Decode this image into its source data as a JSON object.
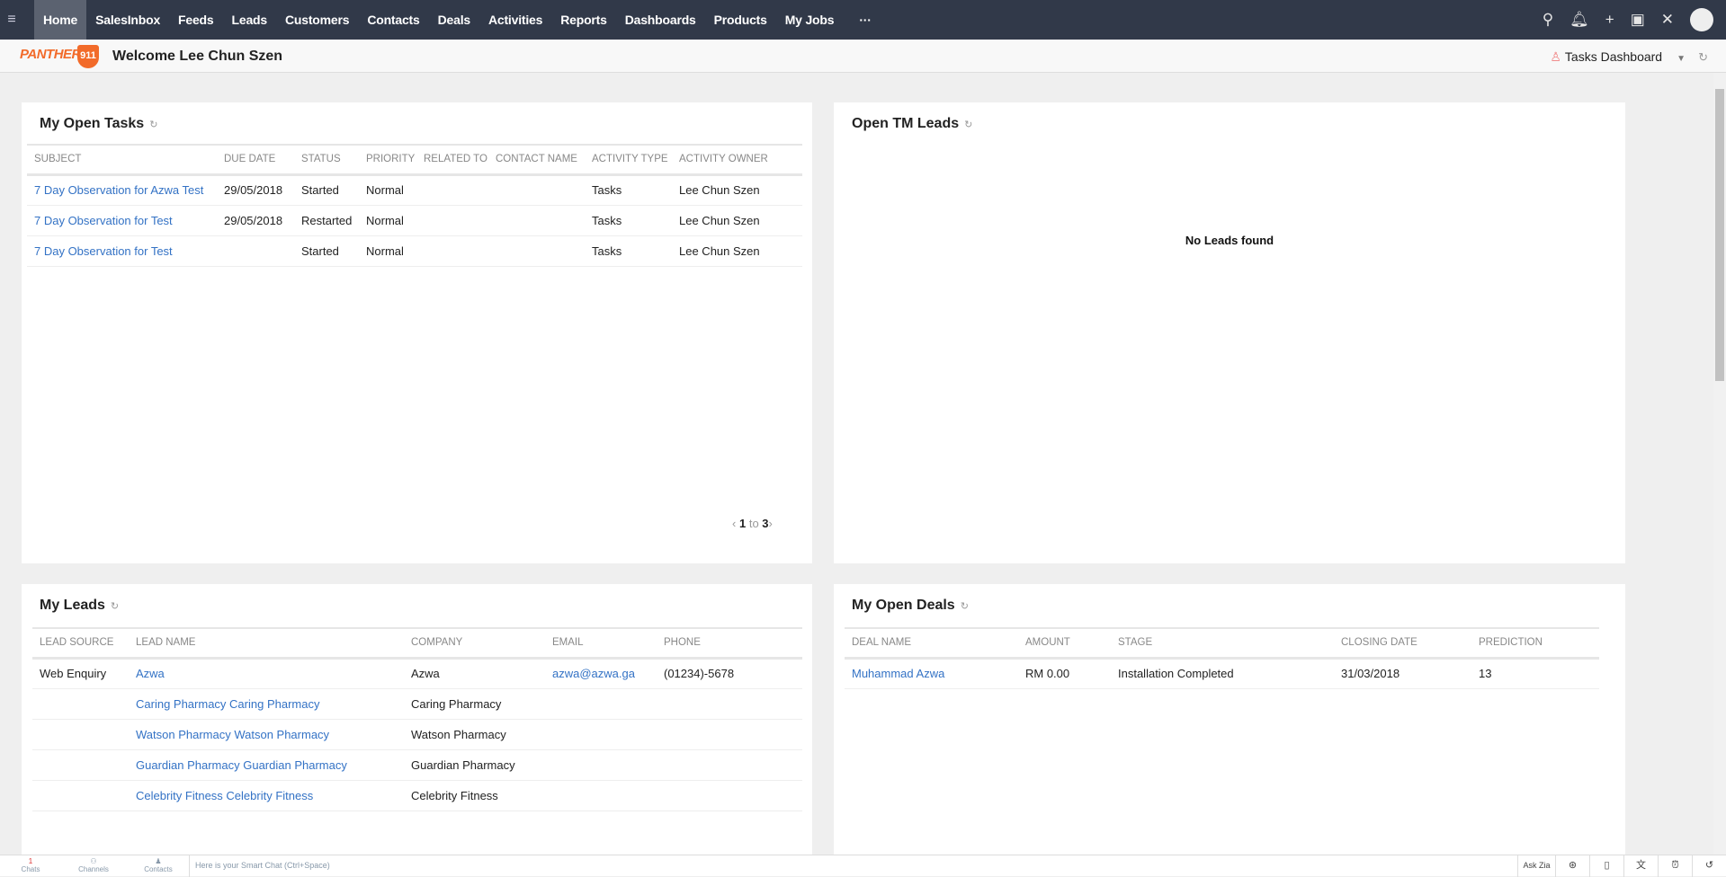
{
  "nav": {
    "items": [
      "Home",
      "SalesInbox",
      "Feeds",
      "Leads",
      "Customers",
      "Contacts",
      "Deals",
      "Activities",
      "Reports",
      "Dashboards",
      "Products",
      "My Jobs"
    ],
    "more": "···",
    "active": "Home"
  },
  "header": {
    "logo": "PANTHER 911",
    "welcome": "Welcome Lee Chun Szen",
    "dashboard": "Tasks Dashboard"
  },
  "tasks": {
    "title": "My Open Tasks",
    "columns": [
      "SUBJECT",
      "DUE DATE",
      "STATUS",
      "PRIORITY",
      "RELATED TO",
      "CONTACT NAME",
      "ACTIVITY TYPE",
      "ACTIVITY OWNER"
    ],
    "rows": [
      [
        "7 Day Observation for Azwa Test",
        "29/05/2018",
        "Started",
        "Normal",
        "",
        "",
        "Tasks",
        "Lee Chun Szen"
      ],
      [
        "7 Day Observation for Test",
        "29/05/2018",
        "Restarted",
        "Normal",
        "",
        "",
        "Tasks",
        "Lee Chun Szen"
      ],
      [
        "7 Day Observation for Test",
        "",
        "Started",
        "Normal",
        "",
        "",
        "Tasks",
        "Lee Chun Szen"
      ]
    ],
    "pager": {
      "from": "1",
      "to_label": "to",
      "to": "3"
    }
  },
  "tm_leads": {
    "title": "Open TM Leads",
    "empty": "No Leads found"
  },
  "leads": {
    "title": "My Leads",
    "columns": [
      "LEAD SOURCE",
      "LEAD NAME",
      "COMPANY",
      "EMAIL",
      "PHONE"
    ],
    "rows": [
      [
        "Web Enquiry",
        "Azwa",
        "Azwa",
        "azwa@azwa.ga",
        "(01234)-5678"
      ],
      [
        "",
        "Caring Pharmacy Caring Pharmacy",
        "Caring Pharmacy",
        "",
        ""
      ],
      [
        "",
        "Watson Pharmacy Watson Pharmacy",
        "Watson Pharmacy",
        "",
        ""
      ],
      [
        "",
        "Guardian Pharmacy Guardian Pharmacy",
        "Guardian Pharmacy",
        "",
        ""
      ],
      [
        "",
        "Celebrity Fitness Celebrity Fitness",
        "Celebrity Fitness",
        "",
        ""
      ]
    ]
  },
  "deals": {
    "title": "My Open Deals",
    "columns": [
      "DEAL NAME",
      "AMOUNT",
      "STAGE",
      "CLOSING DATE",
      "PREDICTION"
    ],
    "rows": [
      [
        "Muhammad Azwa",
        "RM 0.00",
        "Installation Completed",
        "31/03/2018",
        "13"
      ]
    ]
  },
  "bottom": {
    "items": [
      "Chats",
      "Channels",
      "Contacts"
    ],
    "smart_chat": "Here is your Smart Chat (Ctrl+Space)",
    "ask_zia": "Ask Zia",
    "chat_badge": "1"
  },
  "colors": {
    "nav_bg": "#313949",
    "link": "#3372c5",
    "brand": "#f26b2a"
  }
}
